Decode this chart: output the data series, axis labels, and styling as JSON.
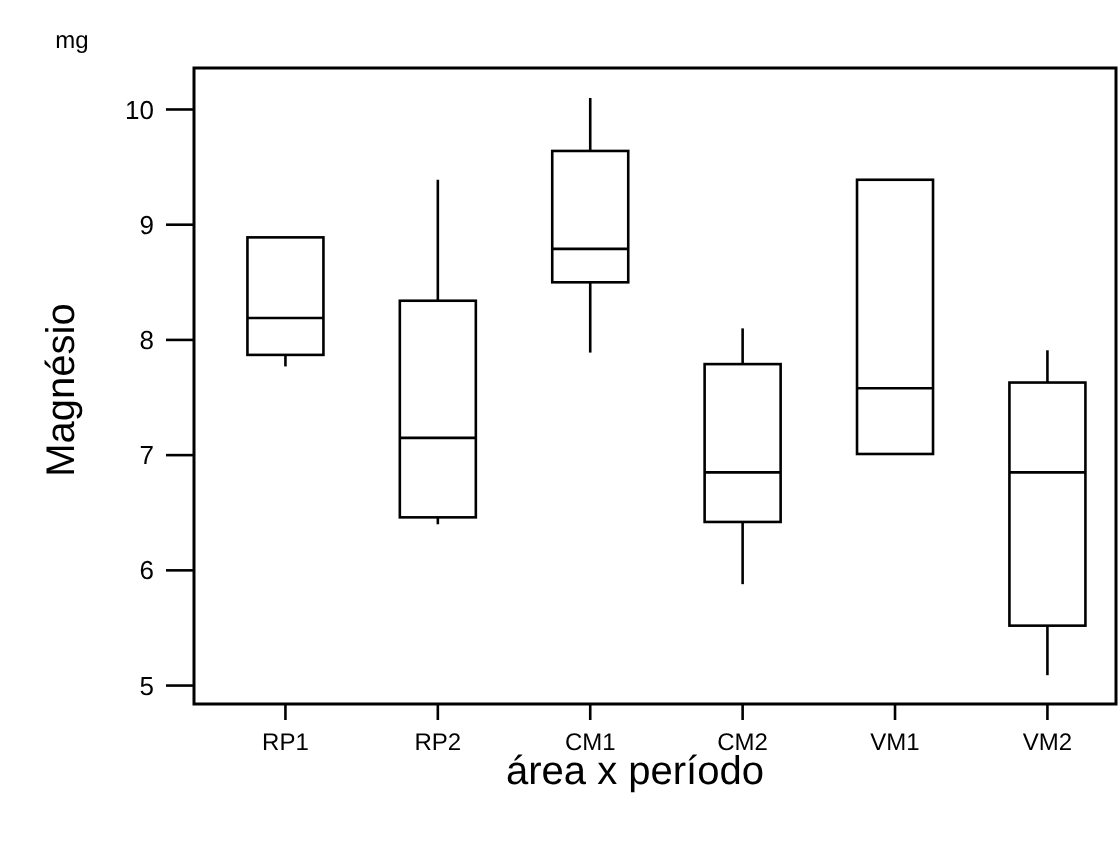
{
  "chart_data": {
    "type": "box",
    "xlabel": "área x período",
    "ylabel": "Magnésio",
    "annotations": [
      "mg"
    ],
    "categories": [
      "RP1",
      "RP2",
      "CM1",
      "CM2",
      "VM1",
      "VM2"
    ],
    "boxes": [
      {
        "low": 7.77,
        "q1": 7.87,
        "median": 8.19,
        "q3": 8.89,
        "high": 8.89
      },
      {
        "low": 6.4,
        "q1": 6.46,
        "median": 7.15,
        "q3": 8.34,
        "high": 9.39
      },
      {
        "low": 7.89,
        "q1": 8.5,
        "median": 8.79,
        "q3": 9.64,
        "high": 10.1
      },
      {
        "low": 5.88,
        "q1": 6.42,
        "median": 6.85,
        "q3": 7.79,
        "high": 8.1
      },
      {
        "low": 7.01,
        "q1": 7.01,
        "median": 7.58,
        "q3": 9.39,
        "high": 9.39
      },
      {
        "low": 5.09,
        "q1": 5.52,
        "median": 6.85,
        "q3": 7.63,
        "high": 7.91
      }
    ],
    "color": "#000000",
    "ylim": [
      4.84,
      10.36
    ],
    "yticks": [
      5,
      6,
      7,
      8,
      9,
      10
    ],
    "grid": false
  }
}
